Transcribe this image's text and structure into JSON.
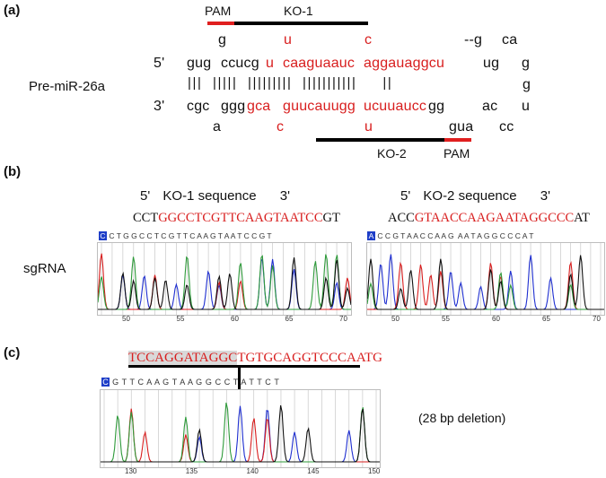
{
  "panels": {
    "a": "(a)",
    "b": "(b)",
    "c": "(c)"
  },
  "panel_a": {
    "pam_top": "PAM",
    "ko1": "KO-1",
    "pre_mir": "Pre-miR-26a",
    "five_prime": "5'",
    "three_prime": "3'",
    "top_bulge": {
      "g1": "g",
      "u": "u",
      "c": "c",
      "gap_g": "--g",
      "ca": "ca"
    },
    "strand5": {
      "b1": "gug",
      "b2": "ccucg",
      "r1": "u",
      "r2": "caaguaauc",
      "r3": "aggauaggcu",
      "b3": "ug",
      "b4": "g"
    },
    "pair_line": "|||  |||||  |||||||||  |||||||||||     ||",
    "loop_g": "g",
    "strand3": {
      "b1": "cgc",
      "b2": "ggg",
      "r1": "gca",
      "r2": "guucauugg",
      "r3": "ucuuaucc",
      "b3": "gg",
      "b4": "ac",
      "b5": "u"
    },
    "bottom_bulge": {
      "a": "a",
      "c": "c",
      "u": "u",
      "gua": "gua",
      "cc": "cc"
    },
    "ko2": "KO-2",
    "pam_bottom": "PAM"
  },
  "panel_b": {
    "ko1_title": {
      "p5": "5'",
      "text": "KO-1  sequence",
      "p3": "3'"
    },
    "ko2_title": {
      "p5": "5'",
      "text": "KO-2  sequence",
      "p3": "3'"
    },
    "ko1_seq": {
      "pre": "CCT",
      "guide": "GGCCTCGTTCAAGTAATCC",
      "post": "GT"
    },
    "ko2_seq": {
      "pre": "ACC",
      "guide": "GTAACCAAGAATAGGCCC",
      "post": "AT"
    },
    "sgrna": "sgRNA",
    "ko1_bases_first": "C",
    "ko1_bases": " C T G G C C T C G T T C A A G T A A T C C G T",
    "ko2_bases_first": "A",
    "ko2_bases": " C C G T A A C C A A G  A A T A G G C C C A T",
    "ko1_ticks": [
      "50",
      "55",
      "60",
      "65",
      "70"
    ],
    "ko2_ticks": [
      "50",
      "55",
      "60",
      "65",
      "70"
    ]
  },
  "panel_c": {
    "highlight": "TCCAGGATAGGC",
    "rest": "TGTGCAGGTCCCAATG",
    "bases_first": "C",
    "bases": " G T T C A A G T A A G G C C T A T T C T",
    "deletion": "(28 bp deletion)",
    "ticks": [
      "130",
      "135",
      "140",
      "145",
      "150"
    ]
  },
  "colors": {
    "red": "#d81e1e",
    "bar": "#000000",
    "pam": "#e01f1f",
    "trace_blue": "#1f2fd0",
    "trace_red": "#d81e1e",
    "trace_green": "#2e9a3a",
    "trace_black": "#111111",
    "highlight_bg": "#d9d9d9"
  }
}
